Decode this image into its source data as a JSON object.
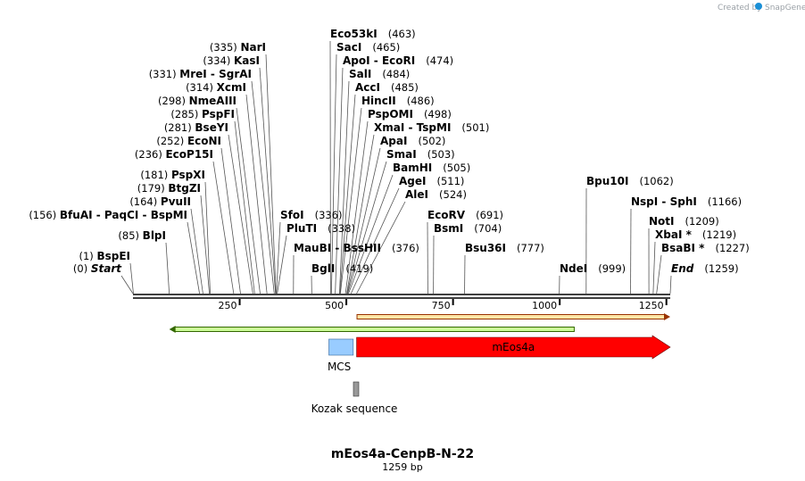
{
  "watermark": {
    "prefix": "Created by",
    "brand": "SnapGene"
  },
  "plasmid": {
    "name": "mEos4a-CenpB-N-22",
    "size_text": "1259 bp",
    "length": 1259
  },
  "sites_left": [
    {
      "name": "NarI",
      "pos": 335,
      "pos_label": "(335)"
    },
    {
      "name": "KasI",
      "pos": 334,
      "pos_label": "(334)"
    },
    {
      "name": "MreI",
      "sep": "-",
      "name2": "SgrAI",
      "pos": 331,
      "pos_label": "(331)"
    },
    {
      "name": "XcmI",
      "pos": 314,
      "pos_label": "(314)"
    },
    {
      "name": "NmeAIII",
      "pos": 298,
      "pos_label": "(298)"
    },
    {
      "name": "PspFI",
      "pos": 285,
      "pos_label": "(285)"
    },
    {
      "name": "BseYI",
      "pos": 281,
      "pos_label": "(281)"
    },
    {
      "name": "EcoNI",
      "pos": 252,
      "pos_label": "(252)"
    },
    {
      "name": "EcoP15I",
      "pos": 236,
      "pos_label": "(236)"
    },
    {
      "name": "PspXI",
      "pos": 181,
      "pos_label": "(181)"
    },
    {
      "name": "BtgZI",
      "pos": 179,
      "pos_label": "(179)"
    },
    {
      "name": "PvuII",
      "pos": 164,
      "pos_label": "(164)"
    },
    {
      "name": "BfuAI",
      "sep": "-",
      "name2": "PaqCI",
      "sep2": "-",
      "name3": "BspMI",
      "pos": 156,
      "pos_label": "(156)"
    },
    {
      "name": "BlpI",
      "pos": 85,
      "pos_label": "(85)"
    },
    {
      "name": "BspEI",
      "pos": 1,
      "pos_label": "(1)"
    },
    {
      "name": "Start",
      "pos": 0,
      "pos_label": "(0)"
    }
  ],
  "sites_middle": [
    {
      "name": "Eco53kI",
      "pos": 463,
      "pos_label": "(463)"
    },
    {
      "name": "SacI",
      "pos": 465,
      "pos_label": "(465)"
    },
    {
      "name": "ApoI",
      "sep": "-",
      "name2": "EcoRI",
      "pos": 474,
      "pos_label": "(474)"
    },
    {
      "name": "SalI",
      "pos": 484,
      "pos_label": "(484)"
    },
    {
      "name": "AccI",
      "pos": 485,
      "pos_label": "(485)"
    },
    {
      "name": "HincII",
      "pos": 486,
      "pos_label": "(486)"
    },
    {
      "name": "PspOMI",
      "pos": 498,
      "pos_label": "(498)"
    },
    {
      "name": "XmaI",
      "sep": "-",
      "name2": "TspMI",
      "pos": 501,
      "pos_label": "(501)"
    },
    {
      "name": "ApaI",
      "pos": 502,
      "pos_label": "(502)"
    },
    {
      "name": "SmaI",
      "pos": 503,
      "pos_label": "(503)"
    },
    {
      "name": "BamHI",
      "pos": 505,
      "pos_label": "(505)"
    },
    {
      "name": "AgeI",
      "pos": 511,
      "pos_label": "(511)"
    },
    {
      "name": "AleI",
      "pos": 524,
      "pos_label": "(524)"
    },
    {
      "name": "SfoI",
      "pos": 336,
      "pos_label": "(336)"
    },
    {
      "name": "PluTI",
      "pos": 338,
      "pos_label": "(338)"
    },
    {
      "name": "MauBI",
      "sep": "-",
      "name2": "BssHII",
      "pos": 376,
      "pos_label": "(376)"
    },
    {
      "name": "BglI",
      "pos": 419,
      "pos_label": "(419)"
    }
  ],
  "sites_right": [
    {
      "name": "EcoRV",
      "pos": 691,
      "pos_label": "(691)"
    },
    {
      "name": "BsmI",
      "pos": 704,
      "pos_label": "(704)"
    },
    {
      "name": "Bsu36I",
      "pos": 777,
      "pos_label": "(777)"
    },
    {
      "name": "Bpu10I",
      "pos": 1062,
      "pos_label": "(1062)"
    },
    {
      "name": "NspI",
      "sep": "-",
      "name2": "SphI",
      "pos": 1166,
      "pos_label": "(1166)"
    },
    {
      "name": "NotI",
      "pos": 1209,
      "pos_label": "(1209)"
    },
    {
      "name": "XbaI *",
      "pos": 1219,
      "pos_label": "(1219)"
    },
    {
      "name": "BsaBI *",
      "pos": 1227,
      "pos_label": "(1227)"
    },
    {
      "name": "NdeI",
      "pos": 999,
      "pos_label": "(999)"
    },
    {
      "name": "End",
      "pos": 1259,
      "pos_label": "(1259)"
    }
  ],
  "axis_ticks": [
    {
      "value": 250,
      "label": "250"
    },
    {
      "value": 500,
      "label": "500"
    },
    {
      "value": 750,
      "label": "750"
    },
    {
      "value": 1000,
      "label": "1000"
    },
    {
      "value": 1250,
      "label": "1250"
    }
  ],
  "features": [
    {
      "name": "MCS",
      "label": "MCS",
      "start": 459,
      "end": 512,
      "color": "#99ccff"
    },
    {
      "name": "mEos4a",
      "label": "mEos4a",
      "start": 524,
      "end": 1259,
      "color": "#ff0000",
      "text_color": "#ffffff"
    },
    {
      "name": "Kozak sequence",
      "label": "Kozak sequence",
      "start": 515,
      "end": 524,
      "color": "#999999"
    }
  ],
  "orf_arrows": [
    {
      "start": 525,
      "end": 1259,
      "direction": "forward",
      "color": "#ffe6a6",
      "border_color": "#993300"
    },
    {
      "start": 85,
      "end": 1034,
      "direction": "reverse",
      "color": "#ccff99",
      "border_color": "#336600"
    }
  ],
  "colors": {
    "backbone": "#000000",
    "leader": "#555555",
    "watermark": "#9aa0a6"
  }
}
